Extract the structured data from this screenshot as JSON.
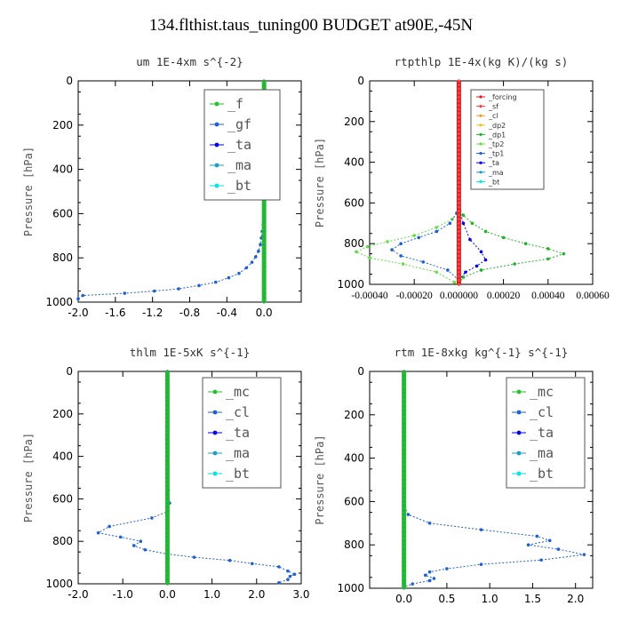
{
  "title": "134.flthist.taus_tuning00  BUDGET at90E,-45N",
  "chart_data": [
    {
      "type": "line",
      "title": "um  1E-4xm s^{-2}",
      "ylabel": "Pressure [hPa]",
      "xlim": [
        -2.0,
        0.4
      ],
      "ylim": [
        1000,
        0
      ],
      "xticks": [
        "-2.0",
        "-1.6",
        "-1.2",
        "-0.8",
        "-0.4",
        "0.0"
      ],
      "xtick_values": [
        -2.0,
        -1.6,
        -1.2,
        -0.8,
        -0.4,
        0.0
      ],
      "yticks": [
        "0",
        "200",
        "400",
        "600",
        "800",
        "1000"
      ],
      "legend": [
        "_f",
        "_gf",
        "_ta",
        "_ma",
        "_bt"
      ],
      "series": [
        {
          "label": "_gf",
          "color": "#1f5fd6",
          "x": [
            0.0,
            0.0,
            -0.01,
            -0.02,
            -0.03,
            -0.04,
            -0.06,
            -0.09,
            -0.13,
            -0.19,
            -0.27,
            -0.38,
            -0.52,
            -0.7,
            -0.92,
            -1.18,
            -1.5,
            -1.95,
            -2.0
          ],
          "y": [
            550,
            600,
            650,
            680,
            710,
            740,
            770,
            795,
            820,
            845,
            870,
            890,
            910,
            925,
            940,
            950,
            960,
            970,
            985
          ]
        },
        {
          "label": "_f",
          "color": "#22c12a",
          "x": [
            0.0,
            0.0
          ],
          "y": [
            0,
            1000
          ]
        }
      ]
    },
    {
      "type": "line",
      "title": "rtpthlp  1E-4x(kg K)/(kg s)",
      "ylabel": "Pressure [hPa]",
      "xlim": [
        -0.0004,
        0.0006
      ],
      "ylim": [
        1000,
        0
      ],
      "xticks": [
        "-0.00040",
        "-0.00020",
        "0.000000",
        "0.00020",
        "0.00040",
        "0.00060"
      ],
      "xtick_values": [
        -0.0004,
        -0.0002,
        0.0,
        0.0002,
        0.0004,
        0.0006
      ],
      "yticks": [
        "0",
        "200",
        "400",
        "600",
        "800",
        "1000"
      ],
      "legend": [
        "_forcing",
        "_sf",
        "_cl",
        "_dp2",
        "_dp1",
        "_tp2",
        "_tp1",
        "_ta",
        "_ma",
        "_bt"
      ],
      "series": [
        {
          "label": "_dp1",
          "color": "#22b22a",
          "x": [
            0.0,
            2e-05,
            6e-05,
            0.00012,
            0.0002,
            0.0003,
            0.0004,
            0.00047,
            0.0004,
            0.00025,
            0.0001,
            2e-05,
            0.0
          ],
          "y": [
            620,
            660,
            700,
            740,
            770,
            800,
            825,
            850,
            875,
            900,
            930,
            965,
            1000
          ]
        },
        {
          "label": "_tp2",
          "color": "#66dd44",
          "x": [
            0.0,
            -3e-05,
            -0.0001,
            -0.0002,
            -0.00032,
            -0.00041,
            -0.00046,
            -0.0004,
            -0.00025,
            -0.0001,
            -2e-05
          ],
          "y": [
            640,
            680,
            720,
            760,
            790,
            815,
            840,
            870,
            900,
            940,
            990
          ]
        },
        {
          "label": "_tp1",
          "color": "#1f5fd6",
          "x": [
            -1e-05,
            -4e-05,
            -0.0001,
            -0.00018,
            -0.00026,
            -0.0003,
            -0.00026,
            -0.00016,
            -5e-05,
            0.0
          ],
          "y": [
            650,
            700,
            740,
            770,
            800,
            830,
            860,
            890,
            930,
            980
          ]
        },
        {
          "label": "_ta",
          "color": "#0000ee",
          "x": [
            0.0,
            2e-05,
            5e-05,
            0.0001,
            0.00012,
            8e-05,
            3e-05,
            0.0
          ],
          "y": [
            620,
            700,
            780,
            840,
            880,
            910,
            940,
            980
          ]
        },
        {
          "label": "_forcing",
          "color": "#d42020",
          "x": [
            0.0,
            0.0
          ],
          "y": [
            0,
            1000
          ]
        }
      ]
    },
    {
      "type": "line",
      "title": "thlm  1E-5xK s^{-1}",
      "ylabel": "Pressure [hPa]",
      "xlim": [
        -2.0,
        3.0
      ],
      "ylim": [
        1000,
        0
      ],
      "xticks": [
        "-2.0",
        "-1.0",
        "0.0",
        "1.0",
        "2.0",
        "3.0"
      ],
      "xtick_values": [
        -2.0,
        -1.0,
        0.0,
        1.0,
        2.0,
        3.0
      ],
      "yticks": [
        "0",
        "200",
        "400",
        "600",
        "800",
        "1000"
      ],
      "legend": [
        "_mc",
        "_cl",
        "_ta",
        "_ma",
        "_bt"
      ],
      "series": [
        {
          "label": "_cl",
          "color": "#1f5fd6",
          "x": [
            0.0,
            0.02,
            0.05,
            0.0,
            -0.35,
            -1.3,
            -1.55,
            -1.05,
            -0.6,
            -0.75,
            -0.5,
            0.0,
            0.6,
            1.4,
            1.9,
            2.5,
            2.7,
            2.85,
            2.75,
            2.7,
            2.5
          ],
          "y": [
            0,
            560,
            620,
            660,
            690,
            730,
            760,
            780,
            800,
            820,
            840,
            860,
            875,
            890,
            905,
            920,
            940,
            955,
            965,
            980,
            995
          ]
        },
        {
          "label": "_mc",
          "color": "#22c12a",
          "x": [
            0.0,
            0.0
          ],
          "y": [
            0,
            1000
          ]
        }
      ]
    },
    {
      "type": "line",
      "title": "rtm  1E-8xkg kg^{-1} s^{-1}",
      "ylabel": "Pressure [hPa]",
      "xlim": [
        -0.4,
        2.2
      ],
      "ylim": [
        1000,
        0
      ],
      "xticks": [
        "0.0",
        "0.5",
        "1.0",
        "1.5",
        "2.0"
      ],
      "xtick_values": [
        0.0,
        0.5,
        1.0,
        1.5,
        2.0
      ],
      "yticks": [
        "0",
        "200",
        "400",
        "600",
        "800",
        "1000"
      ],
      "legend": [
        "_mc",
        "_cl",
        "_ta",
        "_ma",
        "_bt"
      ],
      "series": [
        {
          "label": "_cl",
          "color": "#1f5fd6",
          "x": [
            0.0,
            0.0,
            0.05,
            0.3,
            0.9,
            1.55,
            1.7,
            1.45,
            1.8,
            2.1,
            1.6,
            0.9,
            0.5,
            0.3,
            0.25,
            0.35,
            0.3,
            0.1,
            0.0
          ],
          "y": [
            0,
            620,
            660,
            700,
            730,
            760,
            780,
            800,
            820,
            845,
            870,
            890,
            910,
            925,
            940,
            955,
            965,
            980,
            995
          ]
        },
        {
          "label": "_mc",
          "color": "#22c12a",
          "x": [
            0.0,
            0.0
          ],
          "y": [
            0,
            1000
          ]
        }
      ]
    }
  ]
}
